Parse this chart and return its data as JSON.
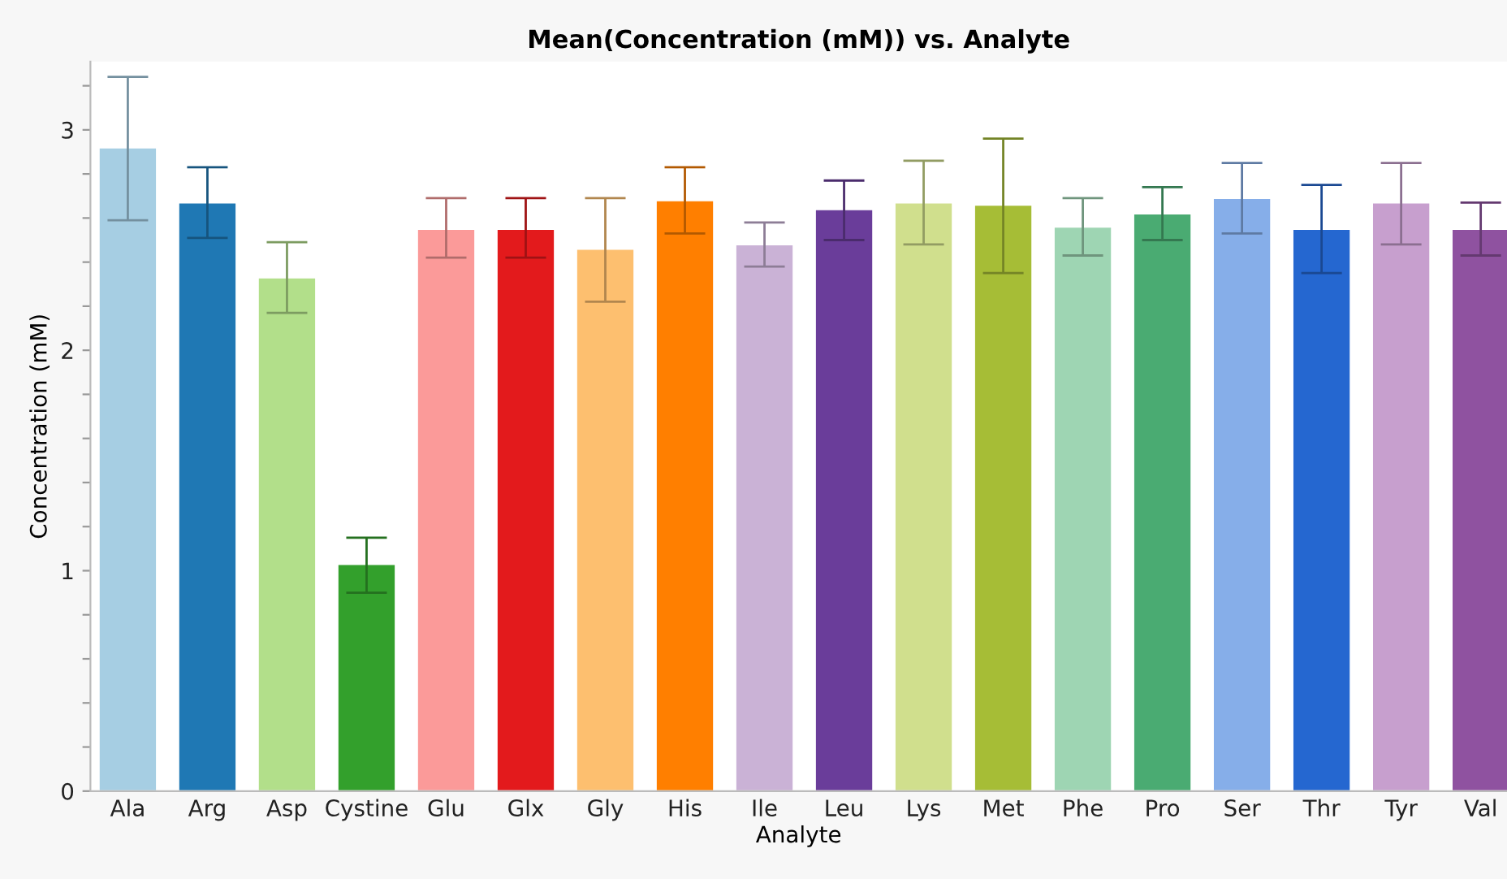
{
  "chart_data": {
    "type": "bar",
    "title": "Mean(Concentration (mM)) vs. Analyte",
    "xlabel": "Analyte",
    "ylabel": "Concentration (mM)",
    "categories": [
      "Ala",
      "Arg",
      "Asp",
      "Cystine",
      "Glu",
      "Glx",
      "Gly",
      "His",
      "Ile",
      "Leu",
      "Lys",
      "Met",
      "Phe",
      "Pro",
      "Ser",
      "Thr",
      "Tyr",
      "Val"
    ],
    "values": [
      2.92,
      2.67,
      2.33,
      1.03,
      2.55,
      2.55,
      2.46,
      2.68,
      2.48,
      2.64,
      2.67,
      2.66,
      2.56,
      2.62,
      2.69,
      2.55,
      2.67,
      2.55
    ],
    "errors": [
      [
        2.59,
        3.24
      ],
      [
        2.51,
        2.83
      ],
      [
        2.17,
        2.49
      ],
      [
        0.9,
        1.15
      ],
      [
        2.42,
        2.69
      ],
      [
        2.42,
        2.69
      ],
      [
        2.22,
        2.69
      ],
      [
        2.53,
        2.83
      ],
      [
        2.38,
        2.58
      ],
      [
        2.5,
        2.77
      ],
      [
        2.48,
        2.86
      ],
      [
        2.35,
        2.96
      ],
      [
        2.43,
        2.69
      ],
      [
        2.5,
        2.74
      ],
      [
        2.53,
        2.85
      ],
      [
        2.35,
        2.75
      ],
      [
        2.48,
        2.85
      ],
      [
        2.43,
        2.67
      ]
    ],
    "colors": [
      "#a6cee3",
      "#1f78b4",
      "#b2df8a",
      "#33a02c",
      "#fb9a99",
      "#e31a1c",
      "#fdbf6f",
      "#ff7f00",
      "#cab2d6",
      "#6a3d9a",
      "#d0df8d",
      "#a6bd36",
      "#9ed5b3",
      "#4aab72",
      "#86aee9",
      "#2567d0",
      "#c79fce",
      "#8f52a0"
    ],
    "ylim": [
      0,
      3.31
    ],
    "yticks": [
      0,
      {
        "value": 0.2,
        "label": null
      },
      {
        "value": 0.4,
        "label": null
      },
      {
        "value": 0.6,
        "label": null
      },
      {
        "value": 0.8,
        "label": null
      },
      1,
      {
        "value": 1.2,
        "label": null
      },
      {
        "value": 1.4,
        "label": null
      },
      {
        "value": 1.6,
        "label": null
      },
      {
        "value": 1.8,
        "label": null
      },
      2,
      {
        "value": 2.2,
        "label": null
      },
      {
        "value": 2.4,
        "label": null
      },
      {
        "value": 2.6,
        "label": null
      },
      {
        "value": 2.8,
        "label": null
      },
      3,
      {
        "value": 3.2,
        "label": null
      }
    ],
    "grid": false,
    "legend": false
  }
}
